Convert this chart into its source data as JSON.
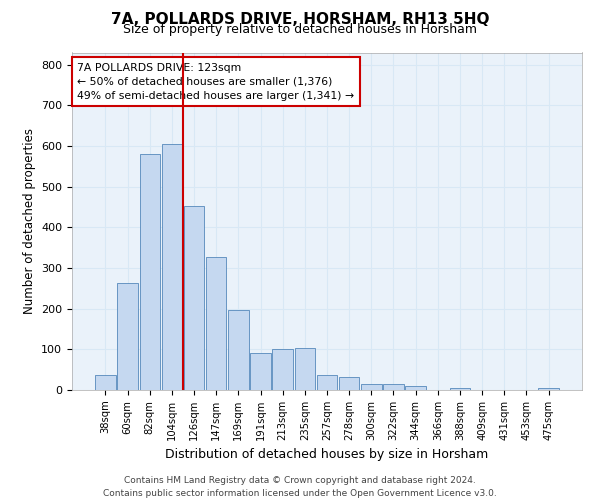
{
  "title": "7A, POLLARDS DRIVE, HORSHAM, RH13 5HQ",
  "subtitle": "Size of property relative to detached houses in Horsham",
  "xlabel": "Distribution of detached houses by size in Horsham",
  "ylabel": "Number of detached properties",
  "categories": [
    "38sqm",
    "60sqm",
    "82sqm",
    "104sqm",
    "126sqm",
    "147sqm",
    "169sqm",
    "191sqm",
    "213sqm",
    "235sqm",
    "257sqm",
    "278sqm",
    "300sqm",
    "322sqm",
    "344sqm",
    "366sqm",
    "388sqm",
    "409sqm",
    "431sqm",
    "453sqm",
    "475sqm"
  ],
  "values": [
    38,
    263,
    581,
    604,
    452,
    328,
    196,
    92,
    101,
    104,
    38,
    33,
    15,
    15,
    10,
    0,
    6,
    0,
    0,
    0,
    6
  ],
  "bar_color": "#c5d8f0",
  "bar_edge_color": "#5588bb",
  "vline_color": "#cc0000",
  "annotation_text": "7A POLLARDS DRIVE: 123sqm\n← 50% of detached houses are smaller (1,376)\n49% of semi-detached houses are larger (1,341) →",
  "annotation_box_color": "#ffffff",
  "annotation_box_edgecolor": "#cc0000",
  "ylim": [
    0,
    830
  ],
  "yticks": [
    0,
    100,
    200,
    300,
    400,
    500,
    600,
    700,
    800
  ],
  "grid_color": "#d8e8f5",
  "background_color": "#eaf2fa",
  "footer1": "Contains HM Land Registry data © Crown copyright and database right 2024.",
  "footer2": "Contains public sector information licensed under the Open Government Licence v3.0."
}
